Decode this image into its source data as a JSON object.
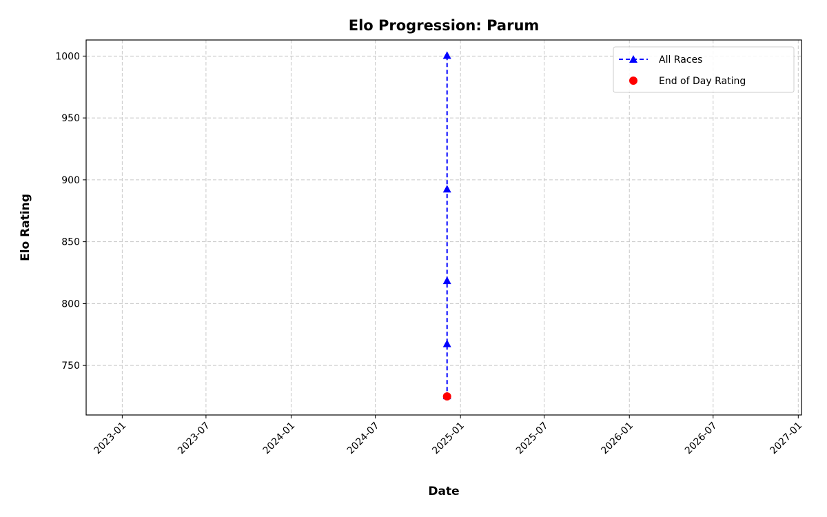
{
  "chart_data": {
    "type": "line",
    "title": "Elo Progression: Parum",
    "xlabel": "Date",
    "ylabel": "Elo Rating",
    "xlim": [
      "2022-10-15",
      "2027-01-08"
    ],
    "ylim": [
      710,
      1013
    ],
    "x_ticks": [
      "2023-01",
      "2023-07",
      "2024-01",
      "2024-07",
      "2025-01",
      "2025-07",
      "2026-01",
      "2026-07",
      "2027-01"
    ],
    "y_ticks": [
      750,
      800,
      850,
      900,
      950,
      1000
    ],
    "grid": true,
    "legend_position": "top-right",
    "series": [
      {
        "name": "All Races",
        "style": "dashed-line-triangle-markers",
        "color": "#0000ff",
        "x": [
          "2024-12-03",
          "2024-12-03",
          "2024-12-03",
          "2024-12-03",
          "2024-12-03"
        ],
        "y": [
          1000,
          892,
          818,
          767,
          725
        ]
      },
      {
        "name": "End of Day Rating",
        "style": "scatter-circle",
        "color": "#ff0000",
        "x": [
          "2024-12-03"
        ],
        "y": [
          725
        ]
      }
    ]
  }
}
